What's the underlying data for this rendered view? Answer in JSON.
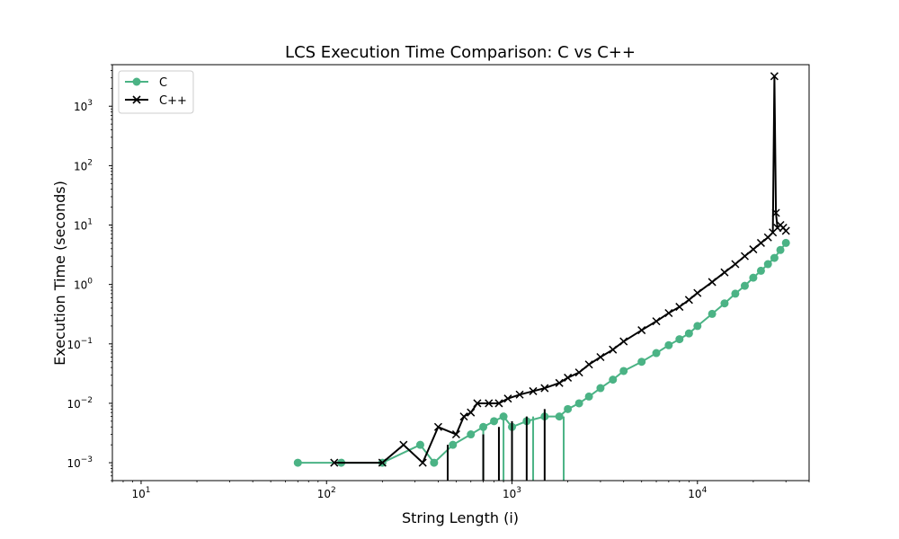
{
  "chart_data": {
    "type": "line",
    "title": "LCS Execution Time Comparison: C vs C++",
    "xlabel": "String Length (i)",
    "ylabel": "Execution Time (seconds)",
    "xscale": "log",
    "yscale": "log",
    "xlim": [
      7,
      40000
    ],
    "ylim": [
      0.0005,
      5000
    ],
    "x_ticks": [
      {
        "value": 10,
        "base": "10",
        "exp": "1"
      },
      {
        "value": 100,
        "base": "10",
        "exp": "2"
      },
      {
        "value": 1000,
        "base": "10",
        "exp": "3"
      },
      {
        "value": 10000,
        "base": "10",
        "exp": "4"
      }
    ],
    "y_ticks": [
      {
        "value": 0.001,
        "base": "10",
        "exp": "−3"
      },
      {
        "value": 0.01,
        "base": "10",
        "exp": "−2"
      },
      {
        "value": 0.1,
        "base": "10",
        "exp": "−1"
      },
      {
        "value": 1,
        "base": "10",
        "exp": "0"
      },
      {
        "value": 10,
        "base": "10",
        "exp": "1"
      },
      {
        "value": 100,
        "base": "10",
        "exp": "2"
      },
      {
        "value": 1000,
        "base": "10",
        "exp": "3"
      }
    ],
    "grid": false,
    "legend_position": "top-left",
    "series": [
      {
        "name": "C",
        "color": "#4bb385",
        "marker": "circle",
        "points": [
          [
            70,
            0.001
          ],
          [
            120,
            0.001
          ],
          [
            200,
            0.001
          ],
          [
            320,
            0.002
          ],
          [
            380,
            0.001
          ],
          [
            480,
            0.002
          ],
          [
            600,
            0.003
          ],
          [
            700,
            0.004
          ],
          [
            800,
            0.005
          ],
          [
            900,
            0.006
          ],
          [
            1000,
            0.004
          ],
          [
            1200,
            0.005
          ],
          [
            1500,
            0.006
          ],
          [
            1800,
            0.006
          ],
          [
            2000,
            0.008
          ],
          [
            2300,
            0.01
          ],
          [
            2600,
            0.013
          ],
          [
            3000,
            0.018
          ],
          [
            3500,
            0.025
          ],
          [
            4000,
            0.035
          ],
          [
            5000,
            0.05
          ],
          [
            6000,
            0.07
          ],
          [
            7000,
            0.095
          ],
          [
            8000,
            0.12
          ],
          [
            9000,
            0.15
          ],
          [
            10000,
            0.2
          ],
          [
            12000,
            0.32
          ],
          [
            14000,
            0.48
          ],
          [
            16000,
            0.7
          ],
          [
            18000,
            0.95
          ],
          [
            20000,
            1.3
          ],
          [
            22000,
            1.7
          ],
          [
            24000,
            2.2
          ],
          [
            26000,
            2.8
          ],
          [
            28000,
            3.8
          ],
          [
            30000,
            5.0
          ]
        ],
        "dips": [
          [
            700,
            0.004
          ],
          [
            900,
            0.006
          ],
          [
            1000,
            0.004
          ],
          [
            1300,
            0.006
          ],
          [
            1900,
            0.006
          ]
        ]
      },
      {
        "name": "C++",
        "color": "#000000",
        "marker": "x",
        "points": [
          [
            110,
            0.001
          ],
          [
            200,
            0.001
          ],
          [
            260,
            0.002
          ],
          [
            330,
            0.001
          ],
          [
            400,
            0.004
          ],
          [
            500,
            0.003
          ],
          [
            550,
            0.006
          ],
          [
            600,
            0.007
          ],
          [
            650,
            0.01
          ],
          [
            750,
            0.01
          ],
          [
            850,
            0.01
          ],
          [
            950,
            0.012
          ],
          [
            1100,
            0.014
          ],
          [
            1300,
            0.016
          ],
          [
            1500,
            0.018
          ],
          [
            1800,
            0.022
          ],
          [
            2000,
            0.027
          ],
          [
            2300,
            0.033
          ],
          [
            2600,
            0.045
          ],
          [
            3000,
            0.06
          ],
          [
            3500,
            0.08
          ],
          [
            4000,
            0.11
          ],
          [
            5000,
            0.17
          ],
          [
            6000,
            0.24
          ],
          [
            7000,
            0.33
          ],
          [
            8000,
            0.42
          ],
          [
            9000,
            0.55
          ],
          [
            10000,
            0.72
          ],
          [
            12000,
            1.1
          ],
          [
            14000,
            1.6
          ],
          [
            16000,
            2.2
          ],
          [
            18000,
            3.0
          ],
          [
            20000,
            3.9
          ],
          [
            22000,
            5.0
          ],
          [
            24000,
            6.2
          ],
          [
            25500,
            7.5
          ],
          [
            26000,
            3200
          ],
          [
            26500,
            16
          ],
          [
            27000,
            9
          ],
          [
            28000,
            10
          ],
          [
            29000,
            9
          ],
          [
            30000,
            8
          ]
        ],
        "dips": [
          [
            450,
            0.002
          ],
          [
            700,
            0.003
          ],
          [
            850,
            0.004
          ],
          [
            1000,
            0.005
          ],
          [
            1200,
            0.006
          ],
          [
            1500,
            0.008
          ]
        ]
      }
    ]
  }
}
